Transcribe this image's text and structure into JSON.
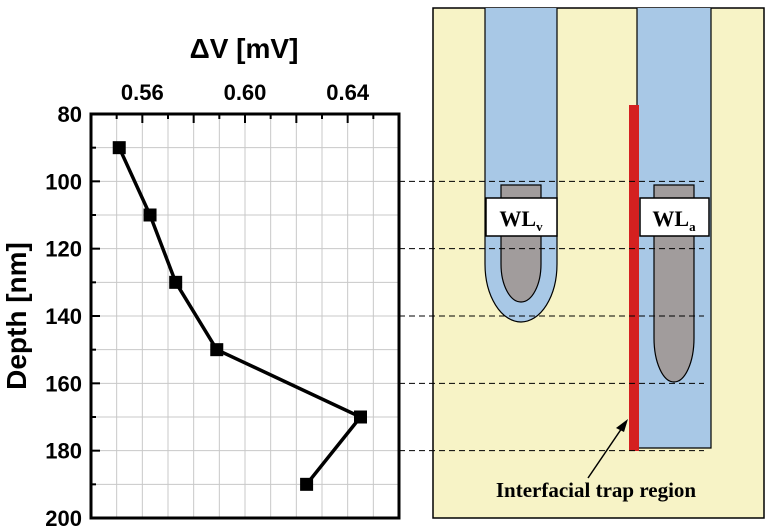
{
  "chart_data": {
    "type": "line",
    "title": "",
    "xlabel": "ΔV [mV]",
    "ylabel": "Depth [nm]",
    "x_axis_position": "top",
    "y_axis_inverted": true,
    "xlim": [
      0.54,
      0.66
    ],
    "ylim": [
      80,
      200
    ],
    "xticks": [
      0.56,
      0.6,
      0.64
    ],
    "xtick_labels": [
      "0.56",
      "0.60",
      "0.64"
    ],
    "yticks": [
      80,
      100,
      120,
      140,
      160,
      180,
      200
    ],
    "ytick_labels": [
      "80",
      "100",
      "120",
      "140",
      "160",
      "180",
      "200"
    ],
    "grid": true,
    "marker": "square",
    "line_color": "#000000",
    "series": [
      {
        "x": [
          0.551,
          0.563,
          0.573,
          0.589,
          0.645,
          0.624
        ],
        "y": [
          90,
          110,
          130,
          150,
          170,
          190
        ]
      }
    ]
  },
  "schematic": {
    "background_color": "#f7f3c6",
    "trench_color": "#a8c8e6",
    "gate_color": "#a19c9c",
    "trap_color": "#d42020",
    "label_v_main": "WL",
    "label_v_sub": "v",
    "label_a_main": "WL",
    "label_a_sub": "a",
    "annotation": "Interfacial trap region"
  }
}
